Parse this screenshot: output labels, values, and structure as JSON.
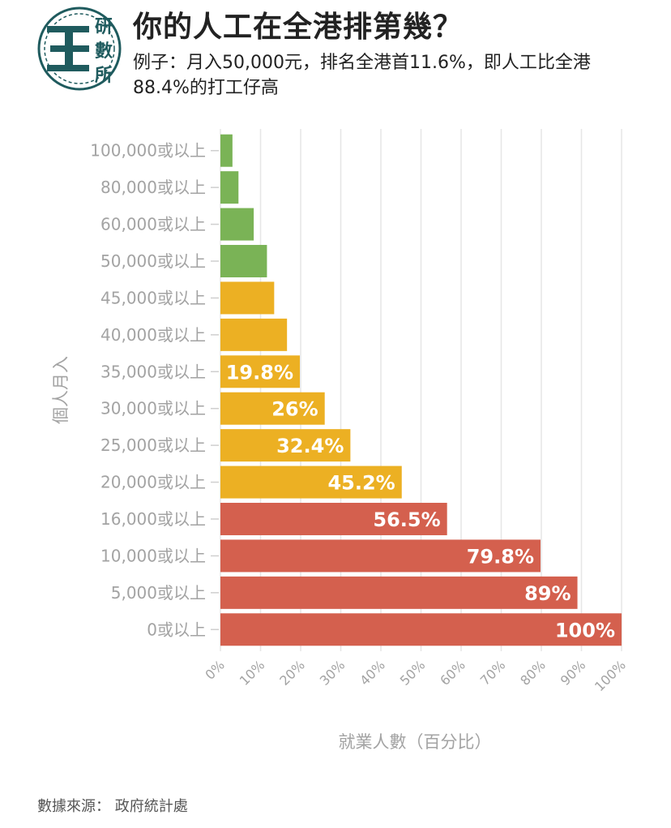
{
  "header": {
    "title": "你的人工在全港排第幾？",
    "subtitle": "例子：月入50,000元，排名全港首11.6%，即人工比全港88.4%的打工仔高",
    "logo_text": [
      "研",
      "數",
      "所"
    ]
  },
  "colors": {
    "green": "#7ab356",
    "yellow": "#ecb023",
    "red": "#d4604e",
    "grid": "#e6e6e6",
    "axis_text": "#a3a3a3"
  },
  "chart_data": {
    "type": "bar",
    "orientation": "horizontal",
    "categories": [
      "100,000或以上",
      "80,000或以上",
      "60,000或以上",
      "50,000或以上",
      "45,000或以上",
      "40,000或以上",
      "35,000或以上",
      "30,000或以上",
      "25,000或以上",
      "20,000或以上",
      "16,000或以上",
      "10,000或以上",
      "5,000或以上",
      "0或以上"
    ],
    "values": [
      3,
      4.5,
      8.3,
      11.6,
      13.4,
      16.6,
      19.8,
      26,
      32.4,
      45.2,
      56.5,
      79.8,
      89,
      100
    ],
    "data_labels": [
      "",
      "",
      "",
      "",
      "",
      "",
      "19.8%",
      "26%",
      "32.4%",
      "45.2%",
      "56.5%",
      "79.8%",
      "89%",
      "100%"
    ],
    "bar_colors": [
      "green",
      "green",
      "green",
      "green",
      "yellow",
      "yellow",
      "yellow",
      "yellow",
      "yellow",
      "yellow",
      "red",
      "red",
      "red",
      "red"
    ],
    "xlabel": "就業人數（百分比）",
    "ylabel": "個人月入",
    "xlim": [
      0,
      100
    ],
    "xticks": [
      "0%",
      "10%",
      "20%",
      "30%",
      "40%",
      "50%",
      "60%",
      "70%",
      "80%",
      "90%",
      "100%"
    ],
    "grid": true
  },
  "footer": {
    "source": "數據來源： 政府統計處"
  }
}
